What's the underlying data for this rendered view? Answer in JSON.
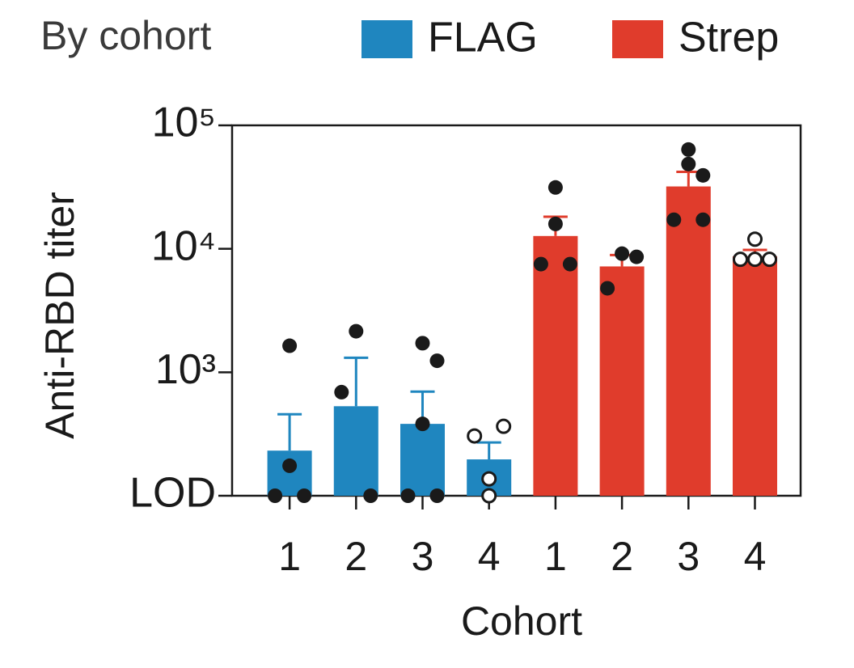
{
  "chart_data": {
    "type": "bar",
    "title": "By cohort",
    "y_label": "Anti-RBD titer",
    "x_label": "Cohort",
    "categories": [
      "1",
      "2",
      "3",
      "4",
      "1",
      "2",
      "3",
      "4"
    ],
    "log_scale": true,
    "ylim": [
      100,
      100000
    ],
    "yticks": [
      {
        "value": 100,
        "label": "LOD"
      },
      {
        "value": 1000,
        "label": "10³"
      },
      {
        "value": 10000,
        "label": "10⁴"
      },
      {
        "value": 100000,
        "label": "10⁵"
      }
    ],
    "series": [
      {
        "name": "FLAG",
        "color": "#1f86bf",
        "values": [
          232,
          531,
          382,
          197,
          null,
          null,
          null,
          null
        ],
        "errors": [
          225,
          781,
          315,
          73,
          null,
          null,
          null,
          null
        ],
        "open_markers": [
          false,
          false,
          false,
          true,
          null,
          null,
          null,
          null
        ],
        "points": [
          [
            100,
            175,
            1640,
            100
          ],
          [
            2150,
            690,
            100
          ],
          [
            100,
            1720,
            1240,
            382,
            100
          ],
          [
            305,
            137,
            100,
            365
          ],
          null,
          null,
          null,
          null
        ]
      },
      {
        "name": "Strep",
        "color": "#e03c2c",
        "values": [
          null,
          null,
          null,
          null,
          12700,
          7200,
          32000,
          8700
        ],
        "errors": [
          null,
          null,
          null,
          null,
          5500,
          1700,
          10000,
          1100
        ],
        "open_markers": [
          null,
          null,
          null,
          null,
          false,
          false,
          false,
          true
        ],
        "points": [
          null,
          null,
          null,
          null,
          [
            7520,
            31400,
            15900,
            7520
          ],
          [
            9140,
            4790,
            8610
          ],
          [
            17200,
            63700,
            39350,
            48600,
            17200
          ],
          [
            8220,
            11970,
            8220,
            8220
          ]
        ]
      }
    ]
  }
}
